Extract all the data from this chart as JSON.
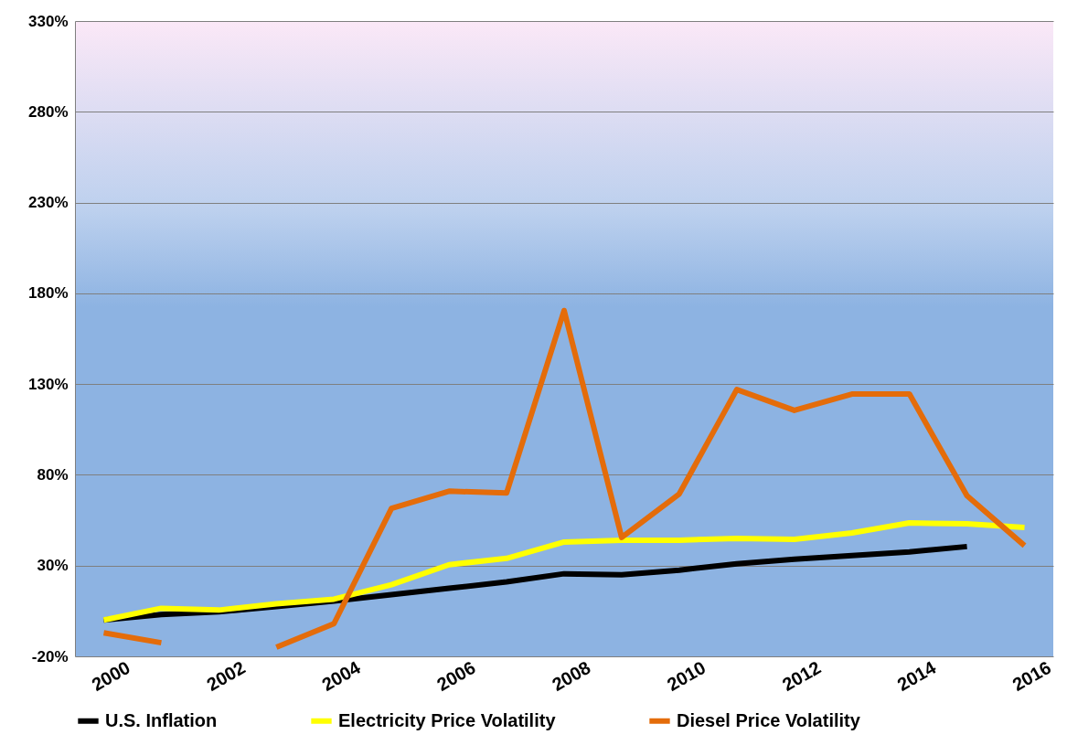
{
  "chart_data": {
    "type": "line",
    "categories": [
      "2000",
      null,
      "2002",
      null,
      "2004",
      null,
      "2006",
      null,
      "2008",
      null,
      "2010",
      null,
      "2012",
      null,
      "2014",
      null,
      "2016"
    ],
    "series": [
      {
        "name": "U.S. Inflation",
        "color": "#000000",
        "values": [
          0,
          3,
          4.5,
          7.5,
          10.5,
          14,
          17.5,
          21,
          25.5,
          25,
          27.5,
          31,
          33.5,
          35.5,
          37.5,
          40.5,
          null
        ]
      },
      {
        "name": "Electricity Price Volatility",
        "color": "#ffff00",
        "values": [
          0,
          6.5,
          5.5,
          9,
          11.5,
          19.5,
          30.5,
          34,
          43,
          44,
          44,
          45,
          44.5,
          48,
          53.5,
          53,
          51
        ]
      },
      {
        "name": "Diesel Price Volatility",
        "color": "#e46c0a",
        "values": [
          -7,
          -12.5,
          null,
          -15,
          -2,
          61.5,
          71,
          70,
          170.5,
          45.5,
          69.5,
          127,
          115.5,
          124.5,
          124.5,
          68.5,
          41
        ]
      }
    ],
    "ylim": [
      -20,
      330
    ],
    "yticks": [
      {
        "value": -20,
        "label": "-20%"
      },
      {
        "value": 30,
        "label": "30%"
      },
      {
        "value": 80,
        "label": "80%"
      },
      {
        "value": 130,
        "label": "130%"
      },
      {
        "value": 180,
        "label": "180%"
      },
      {
        "value": 230,
        "label": "230%"
      },
      {
        "value": 280,
        "label": "280%"
      },
      {
        "value": 330,
        "label": "330%"
      }
    ],
    "grid": "y",
    "legend": "bottom",
    "line_style": "solid"
  }
}
